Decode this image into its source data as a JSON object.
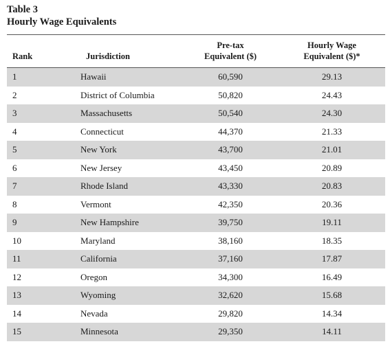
{
  "table": {
    "caption_line1": "Table 3",
    "caption_line2": "Hourly Wage Equivalents",
    "headers": {
      "rank": "Rank",
      "jurisdiction": "Jurisdiction",
      "pretax_line1": "Pre-tax",
      "pretax_line2": "Equivalent ($)",
      "hourly_line1": "Hourly Wage",
      "hourly_line2": "Equivalent ($)*"
    },
    "rows": [
      {
        "rank": "1",
        "jurisdiction": "Hawaii",
        "pretax": "60,590",
        "hourly": "29.13"
      },
      {
        "rank": "2",
        "jurisdiction": "District of Columbia",
        "pretax": "50,820",
        "hourly": "24.43"
      },
      {
        "rank": "3",
        "jurisdiction": "Massachusetts",
        "pretax": "50,540",
        "hourly": "24.30"
      },
      {
        "rank": "4",
        "jurisdiction": "Connecticut",
        "pretax": "44,370",
        "hourly": "21.33"
      },
      {
        "rank": "5",
        "jurisdiction": "New York",
        "pretax": "43,700",
        "hourly": "21.01"
      },
      {
        "rank": "6",
        "jurisdiction": "New Jersey",
        "pretax": "43,450",
        "hourly": "20.89"
      },
      {
        "rank": "7",
        "jurisdiction": "Rhode Island",
        "pretax": "43,330",
        "hourly": "20.83"
      },
      {
        "rank": "8",
        "jurisdiction": "Vermont",
        "pretax": "42,350",
        "hourly": "20.36"
      },
      {
        "rank": "9",
        "jurisdiction": "New Hampshire",
        "pretax": "39,750",
        "hourly": "19.11"
      },
      {
        "rank": "10",
        "jurisdiction": "Maryland",
        "pretax": "38,160",
        "hourly": "18.35"
      },
      {
        "rank": "11",
        "jurisdiction": "California",
        "pretax": "37,160",
        "hourly": "17.87"
      },
      {
        "rank": "12",
        "jurisdiction": "Oregon",
        "pretax": "34,300",
        "hourly": "16.49"
      },
      {
        "rank": "13",
        "jurisdiction": "Wyoming",
        "pretax": "32,620",
        "hourly": "15.68"
      },
      {
        "rank": "14",
        "jurisdiction": "Nevada",
        "pretax": "29,820",
        "hourly": "14.34"
      },
      {
        "rank": "15",
        "jurisdiction": "Minnesota",
        "pretax": "29,350",
        "hourly": "14.11"
      }
    ]
  }
}
